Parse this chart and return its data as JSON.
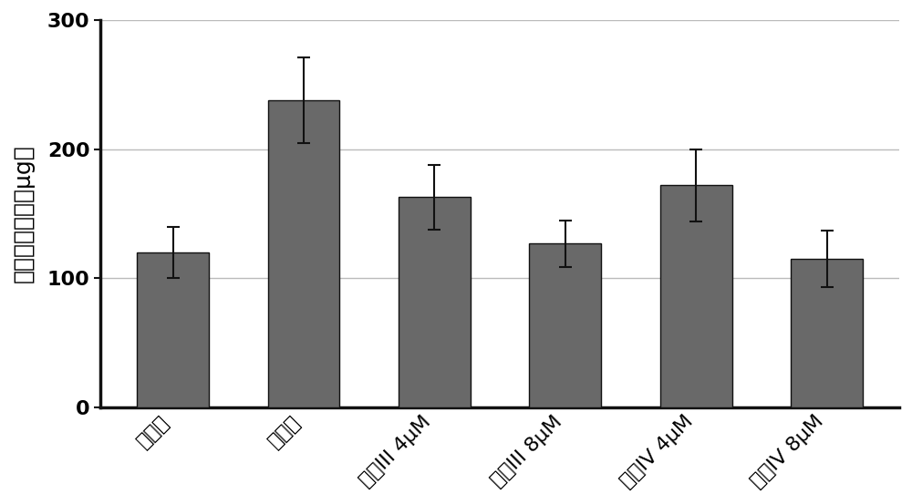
{
  "categories": [
    "对照组",
    "模型组",
    "多肽III 4μM",
    "多肽III 8μM",
    "多肽IV 4μM",
    "多肽IV 8μM"
  ],
  "values": [
    120,
    238,
    163,
    127,
    172,
    115
  ],
  "errors": [
    20,
    33,
    25,
    18,
    28,
    22
  ],
  "bar_color": "#696969",
  "bar_edgecolor": "#111111",
  "ylabel": "羟脃氨酸含量（μg）",
  "ylim": [
    0,
    300
  ],
  "yticks": [
    0,
    100,
    200,
    300
  ],
  "grid_color": "#bbbbbb",
  "background_color": "#ffffff",
  "ylabel_fontsize": 18,
  "tick_fontsize": 16,
  "bar_width": 0.55,
  "capsize": 5
}
